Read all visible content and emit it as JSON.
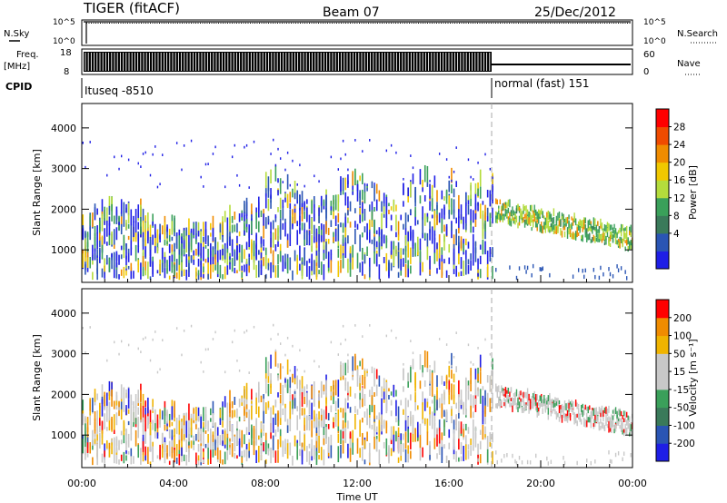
{
  "header": {
    "title": "TIGER (fitACF)",
    "beam": "Beam 07",
    "date": "25/Dec/2012"
  },
  "aux_panels": {
    "nsky_label": "N.Sky",
    "nsky_ticks": [
      "10^5",
      "10^0"
    ],
    "nsearch_label": "N.Search",
    "nsearch_ticks": [
      "10^5",
      "10^0"
    ],
    "freq_label": "Freq.",
    "freq_unit": "[MHz]",
    "freq_ticks": [
      "18",
      "8"
    ],
    "nave_label": "Nave",
    "nave_ticks": [
      "60",
      "0"
    ],
    "cpid_label": "CPID",
    "cpid_segments": [
      "Ituseq -8510",
      "normal (fast) 151"
    ]
  },
  "colors": {
    "power_scale": [
      "#1e1ee6",
      "#2a55b4",
      "#3a7a5a",
      "#3aa05a",
      "#b4dc3c",
      "#f0c800",
      "#f08c00",
      "#f04b00",
      "#ff0000"
    ],
    "velocity_scale": [
      "#1e1ee6",
      "#2a55b4",
      "#3a7a5a",
      "#3aa05a",
      "#c8c8c8",
      "#c8c8c8",
      "#f0b400",
      "#f08c00",
      "#ff0000"
    ]
  },
  "chart_data": [
    {
      "type": "heatmap",
      "name": "power",
      "ylabel": "Slant Range [km]",
      "yticks": [
        "1000",
        "2000",
        "3000",
        "4000"
      ],
      "ylim": [
        200,
        4600
      ],
      "colorbar_label": "Power [dB]",
      "colorbar_ticks": [
        "28",
        "24",
        "20",
        "16",
        "12",
        "8",
        "4"
      ],
      "cpid_change_hour": 18.0
    },
    {
      "type": "heatmap",
      "name": "velocity",
      "ylabel": "Slant Range [km]",
      "yticks": [
        "1000",
        "2000",
        "3000",
        "4000"
      ],
      "ylim": [
        200,
        4600
      ],
      "colorbar_label": "Velocity [m s⁻¹]",
      "colorbar_ticks": [
        "200",
        "100",
        "50",
        "15",
        "-15",
        "-50",
        "-100",
        "-200"
      ],
      "xlabel": "Time UT",
      "xticks": [
        "00:00",
        "04:00",
        "08:00",
        "12:00",
        "16:00",
        "20:00",
        "00:00"
      ],
      "xlim": [
        0,
        24
      ]
    }
  ]
}
